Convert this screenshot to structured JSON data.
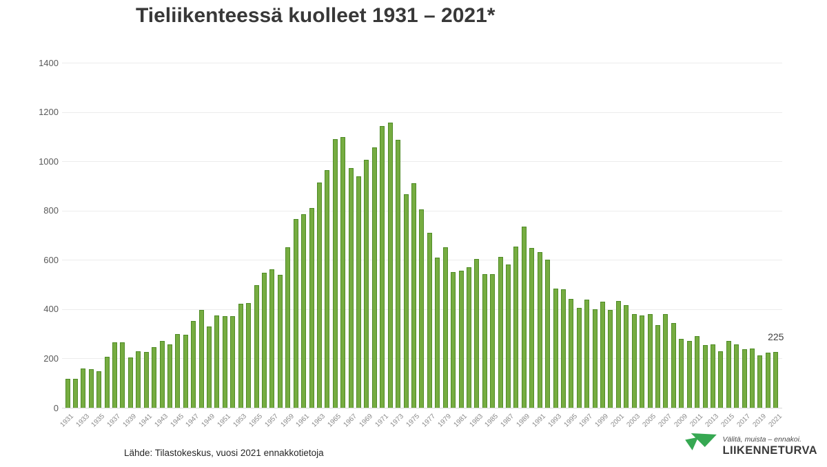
{
  "title": "Tieliikenteessä kuolleet 1931 – 2021*",
  "footer": {
    "source": "Lähde: Tilastokeskus, vuosi 2021 ennakkotietoja"
  },
  "logo": {
    "tagline": "Välitä, muista – ennakoi.",
    "name": "LIIKENNETURVA",
    "green": "#36a852"
  },
  "colors": {
    "bar_fill": "#76ac41",
    "bar_edge": "#4e8b25",
    "grid": "#ececec",
    "axis_line": "#d9d9d9",
    "y_label": "#595959",
    "x_label": "#8a8a8a",
    "title": "#383838",
    "annotation": "#404040",
    "background": "#ffffff"
  },
  "chart_data": {
    "type": "bar",
    "title": "Tieliikenteessä kuolleet 1931 – 2021*",
    "xlabel": "",
    "ylabel": "",
    "x_start_year": 1931,
    "x_end_year": 2021,
    "values": [
      118,
      118,
      160,
      156,
      148,
      208,
      266,
      266,
      204,
      228,
      226,
      245,
      270,
      256,
      300,
      295,
      352,
      398,
      330,
      375,
      373,
      372,
      421,
      426,
      498,
      548,
      562,
      540,
      650,
      765,
      786,
      810,
      913,
      964,
      1090,
      1098,
      973,
      939,
      1006,
      1055,
      1143,
      1156,
      1086,
      865,
      910,
      804,
      709,
      610,
      650,
      551,
      555,
      569,
      604,
      541,
      541,
      612,
      581,
      653,
      734,
      649,
      632,
      601,
      484,
      480,
      441,
      404,
      438,
      400,
      431,
      396,
      433,
      415,
      379,
      375,
      379,
      336,
      380,
      344,
      279,
      272,
      292,
      255,
      258,
      229,
      270,
      258,
      238,
      239,
      211,
      223,
      225
    ],
    "y_ticks": [
      0,
      200,
      400,
      600,
      800,
      1000,
      1200,
      1400
    ],
    "ylim": [
      0,
      1400
    ],
    "x_tick_labels": [
      "1931",
      "1933",
      "1935",
      "1937",
      "1939",
      "1941",
      "1943",
      "1945",
      "1947",
      "1949",
      "1951",
      "1953",
      "1955",
      "1957",
      "1959",
      "1961",
      "1963",
      "1965",
      "1967",
      "1969",
      "1971",
      "1973",
      "1975",
      "1977",
      "1979",
      "1981",
      "1983",
      "1985",
      "1987",
      "1989",
      "1991",
      "1993",
      "1995",
      "1997",
      "1999",
      "2001",
      "2003",
      "2005",
      "2007",
      "2009",
      "2011",
      "2013",
      "2015",
      "2017",
      "2019",
      "2021"
    ],
    "grid": true,
    "legend": "none",
    "annotation": {
      "year": 2021,
      "label": "225"
    }
  }
}
